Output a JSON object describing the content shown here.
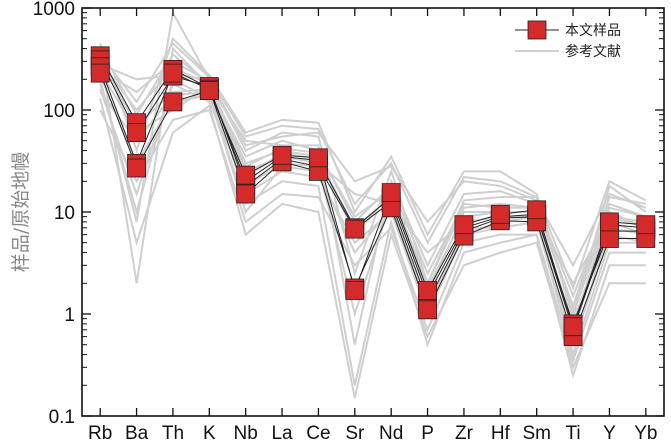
{
  "chart_data": {
    "type": "line",
    "title": "",
    "xlabel": "",
    "ylabel": "样品/原始地幔",
    "y_scale": "log",
    "ylim": [
      0.1,
      1000
    ],
    "y_ticks": [
      {
        "value": 0.1,
        "label": "0.1"
      },
      {
        "value": 1,
        "label": "1"
      },
      {
        "value": 10,
        "label": "10"
      },
      {
        "value": 100,
        "label": "100"
      },
      {
        "value": 1000,
        "label": "1000"
      }
    ],
    "categories": [
      "Rb",
      "Ba",
      "Th",
      "K",
      "Nb",
      "La",
      "Ce",
      "Sr",
      "Nd",
      "P",
      "Zr",
      "Hf",
      "Sm",
      "Ti",
      "Y",
      "Yb"
    ],
    "legend": {
      "position": "top-right"
    },
    "colors": {
      "sample": "#d42a2a",
      "sample_edge": "#222222",
      "reference": "#cfcfcf",
      "axis": "#111111"
    },
    "series": [
      {
        "name": "本文样品",
        "group": "sample",
        "values": [
          340,
          75,
          250,
          165,
          20,
          35,
          32,
          7,
          14,
          1.5,
          7,
          9,
          9.5,
          0.7,
          7.5,
          7
        ]
      },
      {
        "name": "",
        "group": "sample",
        "values": [
          310,
          60,
          215,
          170,
          18,
          33,
          28,
          6.8,
          12.5,
          1.3,
          6.5,
          8.7,
          9,
          0.8,
          6.5,
          6.5
        ]
      },
      {
        "name": "",
        "group": "sample",
        "values": [
          265,
          30,
          230,
          160,
          15,
          31,
          25,
          1.8,
          11,
          1.1,
          5.8,
          8.2,
          8,
          0.6,
          5.5,
          5.5
        ]
      },
      {
        "name": "",
        "group": "sample",
        "values": [
          230,
          27,
          120,
          155,
          23,
          36,
          34,
          1.7,
          15.5,
          1.7,
          7.5,
          9.5,
          10.5,
          0.75,
          8,
          7.5
        ]
      },
      {
        "name": "参考文献",
        "group": "reference",
        "values": [
          300,
          100,
          260,
          180,
          30,
          40,
          35,
          6,
          15,
          1.5,
          10,
          10,
          10,
          0.7,
          8,
          6
        ]
      },
      {
        "name": "",
        "group": "reference",
        "values": [
          200,
          8,
          900,
          200,
          40,
          60,
          55,
          2.5,
          25,
          2.0,
          13,
          14,
          14,
          1.0,
          10,
          7
        ]
      },
      {
        "name": "",
        "group": "reference",
        "values": [
          150,
          50,
          140,
          150,
          15,
          25,
          22,
          5,
          10,
          1.0,
          7,
          7,
          8,
          0.5,
          6,
          5
        ]
      },
      {
        "name": "",
        "group": "reference",
        "values": [
          380,
          2,
          400,
          170,
          50,
          45,
          45,
          0.5,
          20,
          3.0,
          15,
          16,
          12,
          1.5,
          12,
          9
        ]
      },
      {
        "name": "",
        "group": "reference",
        "values": [
          100,
          20,
          80,
          100,
          8,
          15,
          14,
          3,
          7,
          0.7,
          5,
          6,
          6,
          0.35,
          4,
          4
        ]
      },
      {
        "name": "",
        "group": "reference",
        "values": [
          250,
          150,
          300,
          190,
          25,
          35,
          30,
          15,
          12,
          4.0,
          8,
          9,
          9,
          2.0,
          9,
          7
        ]
      },
      {
        "name": "",
        "group": "reference",
        "values": [
          450,
          40,
          500,
          220,
          60,
          80,
          75,
          10,
          35,
          6.0,
          25,
          25,
          15,
          0.9,
          18,
          10
        ]
      },
      {
        "name": "",
        "group": "reference",
        "values": [
          180,
          10,
          200,
          130,
          12,
          20,
          18,
          0.2,
          8,
          0.5,
          4,
          5,
          6,
          0.25,
          3,
          3
        ]
      },
      {
        "name": "",
        "group": "reference",
        "values": [
          320,
          70,
          150,
          160,
          35,
          50,
          40,
          8,
          18,
          2.5,
          12,
          11,
          11,
          1.2,
          14,
          12
        ]
      },
      {
        "name": "",
        "group": "reference",
        "values": [
          220,
          30,
          120,
          140,
          10,
          28,
          25,
          4,
          11,
          1.2,
          6,
          7,
          8,
          0.4,
          5,
          5
        ]
      },
      {
        "name": "",
        "group": "reference",
        "values": [
          280,
          200,
          220,
          200,
          45,
          55,
          60,
          20,
          28,
          8.0,
          20,
          18,
          13,
          3.0,
          15,
          11
        ]
      },
      {
        "name": "",
        "group": "reference",
        "values": [
          130,
          5,
          60,
          110,
          6,
          12,
          10,
          0.15,
          6,
          0.6,
          3,
          4,
          5,
          0.3,
          2,
          2
        ]
      },
      {
        "name": "",
        "group": "reference",
        "values": [
          400,
          90,
          350,
          180,
          22,
          38,
          33,
          7,
          14,
          1.8,
          9,
          10,
          10,
          0.8,
          9,
          8
        ]
      },
      {
        "name": "",
        "group": "reference",
        "values": [
          160,
          15,
          180,
          120,
          18,
          30,
          28,
          1.0,
          13,
          1.0,
          6,
          8,
          9,
          0.5,
          7,
          6
        ]
      },
      {
        "name": "",
        "group": "reference",
        "values": [
          350,
          120,
          450,
          210,
          55,
          70,
          65,
          12,
          30,
          5.0,
          22,
          20,
          14,
          1.8,
          20,
          13
        ]
      },
      {
        "name": "",
        "group": "reference",
        "values": [
          240,
          60,
          100,
          170,
          28,
          42,
          38,
          9,
          16,
          2.0,
          11,
          12,
          11,
          1.1,
          11,
          9
        ]
      }
    ]
  }
}
